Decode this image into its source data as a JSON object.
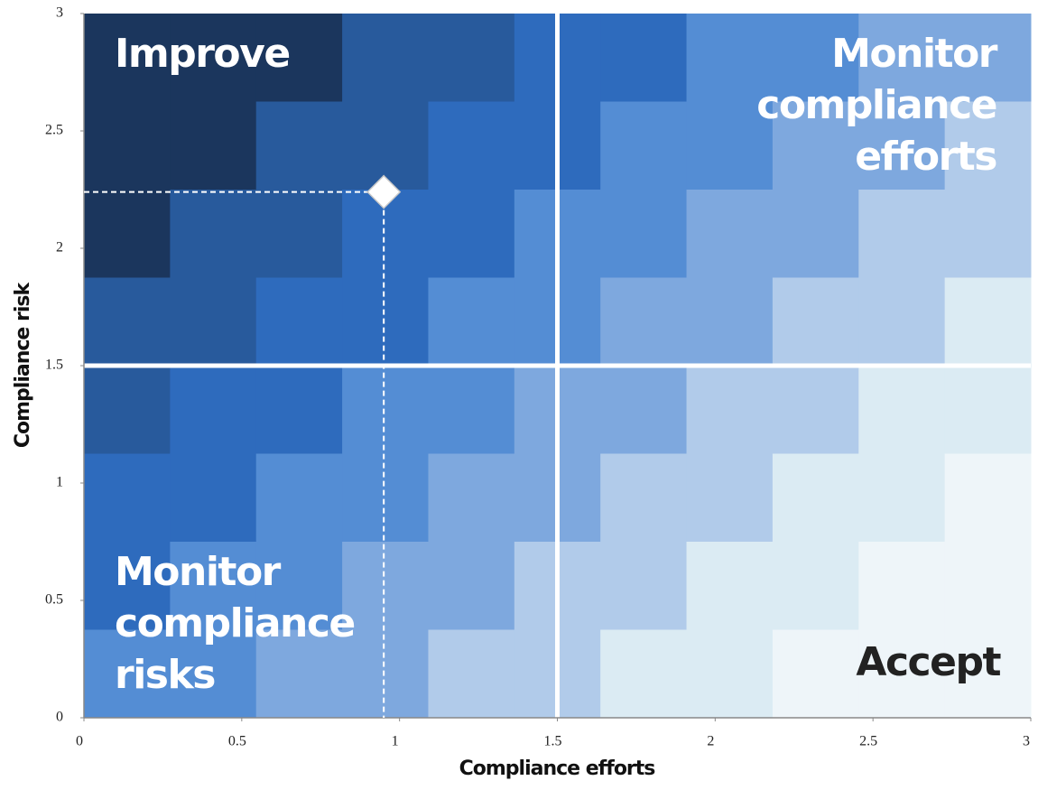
{
  "chart_data": {
    "type": "scatter",
    "x_label": "Compliance efforts",
    "y_label": "Compliance risk",
    "xlim": [
      0,
      3
    ],
    "ylim": [
      0,
      3
    ],
    "xticks": [
      0,
      0.5,
      1,
      1.5,
      2,
      2.5,
      3
    ],
    "yticks": [
      0,
      0.5,
      1,
      1.5,
      2,
      2.5,
      3
    ],
    "x": [
      0.95
    ],
    "values": [
      2.24
    ],
    "color": "#ffffff",
    "quadrant_lines": {
      "x": 1.5,
      "y": 1.5
    },
    "palette": [
      "#1b365d",
      "#285a9c",
      "#2e6bbd",
      "#548dd4",
      "#7ea8de",
      "#b1cbea",
      "#dbebf3",
      "#eef5f9"
    ],
    "background_levels": [
      [
        0,
        0,
        0,
        1,
        1,
        2,
        2,
        3,
        3,
        4,
        4
      ],
      [
        0,
        0,
        1,
        1,
        2,
        2,
        3,
        3,
        4,
        4,
        5
      ],
      [
        0,
        1,
        1,
        2,
        2,
        3,
        3,
        4,
        4,
        5,
        5
      ],
      [
        1,
        1,
        2,
        2,
        3,
        3,
        4,
        4,
        5,
        5,
        6
      ],
      [
        1,
        2,
        2,
        3,
        3,
        4,
        4,
        5,
        5,
        6,
        6
      ],
      [
        2,
        2,
        3,
        3,
        4,
        4,
        5,
        5,
        6,
        6,
        7
      ],
      [
        2,
        3,
        3,
        4,
        4,
        5,
        5,
        6,
        6,
        7,
        7
      ],
      [
        3,
        3,
        4,
        4,
        5,
        5,
        6,
        6,
        7,
        7,
        7
      ]
    ],
    "quadrant_labels": [
      {
        "lines": [
          "Improve"
        ],
        "color": "#ffffff"
      },
      {
        "lines": [
          "Monitor",
          "compliance",
          "efforts"
        ],
        "color": "#ffffff"
      },
      {
        "lines": [
          "Monitor",
          "compliance",
          "risks"
        ],
        "color": "#ffffff"
      },
      {
        "lines": [
          "Accept"
        ],
        "color": "#222222"
      }
    ]
  }
}
